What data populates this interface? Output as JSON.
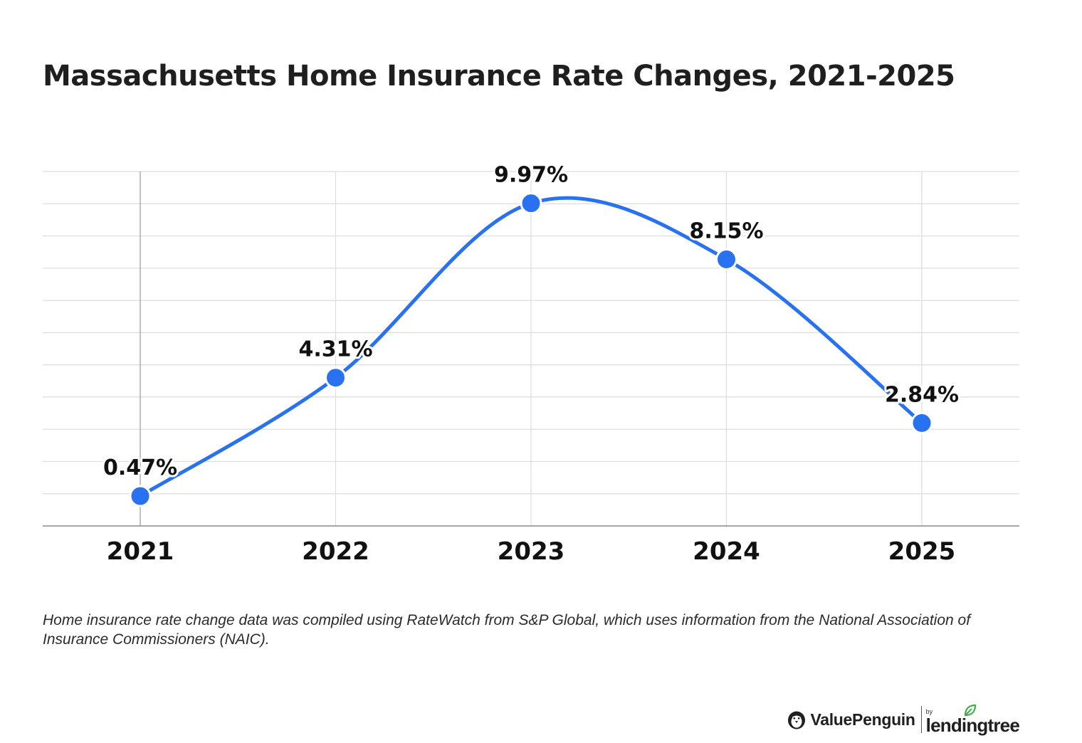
{
  "title": "Massachusetts Home Insurance Rate Changes, 2021-2025",
  "footnote": "Home insurance rate change data was compiled using RateWatch from S&P Global, which uses information from the National Association of Insurance Commissioners (NAIC).",
  "brand": {
    "primary": "ValuePenguin",
    "by": "by",
    "secondary": "lendingtree",
    "icons": [
      "penguin-icon",
      "leaf-icon"
    ]
  },
  "colors": {
    "line": "#2871F0",
    "marker": "#2871F0",
    "grid": "#dcdcdc",
    "axis": "#8a8a8a",
    "leaf": "#3fae49"
  },
  "chart_data": {
    "type": "line",
    "categories": [
      "2021",
      "2022",
      "2023",
      "2024",
      "2025"
    ],
    "series": [
      {
        "values": [
          0.47,
          4.31,
          9.97,
          8.15,
          2.84
        ],
        "labels": [
          "0.47%",
          "4.31%",
          "9.97%",
          "8.15%",
          "2.84%"
        ]
      }
    ],
    "ylim": [
      -0.5,
      11
    ],
    "grid": true,
    "smooth": true,
    "xlabel": "",
    "ylabel": ""
  }
}
